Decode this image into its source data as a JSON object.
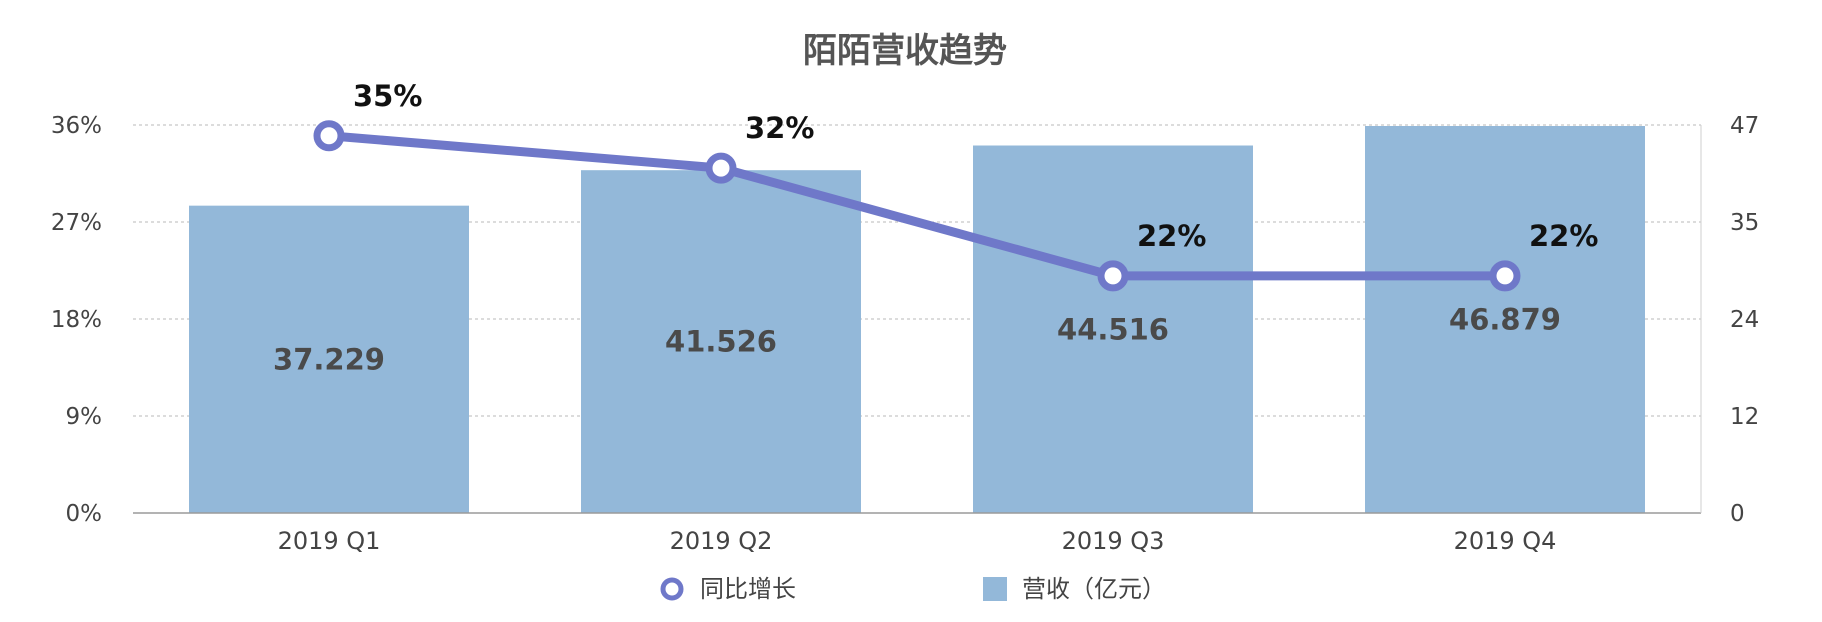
{
  "chart_data": {
    "type": "bar",
    "title": "陌陌营收趋势",
    "categories": [
      "2019 Q1",
      "2019 Q2",
      "2019 Q3",
      "2019 Q4"
    ],
    "series": [
      {
        "name": "营收（亿元）",
        "type": "bar",
        "axis": "right",
        "values": [
          37.229,
          41.526,
          44.516,
          46.879
        ],
        "labels": [
          "37.229",
          "41.526",
          "44.516",
          "46.879"
        ]
      },
      {
        "name": "同比增长",
        "type": "line",
        "axis": "left",
        "values": [
          35,
          32,
          22,
          22
        ],
        "labels": [
          "35%",
          "32%",
          "22%",
          "22%"
        ]
      }
    ],
    "y_left": {
      "ticks": [
        "0%",
        "9%",
        "18%",
        "27%",
        "36%"
      ],
      "min": 0,
      "max": 36
    },
    "y_right": {
      "ticks": [
        "0",
        "12",
        "24",
        "35",
        "47"
      ],
      "min": 0,
      "max": 47
    },
    "grid": true,
    "legend": "bottom",
    "colors": {
      "bar": "#93b8d9",
      "line": "#6f78c9",
      "grid": "#b9b9b9"
    }
  }
}
